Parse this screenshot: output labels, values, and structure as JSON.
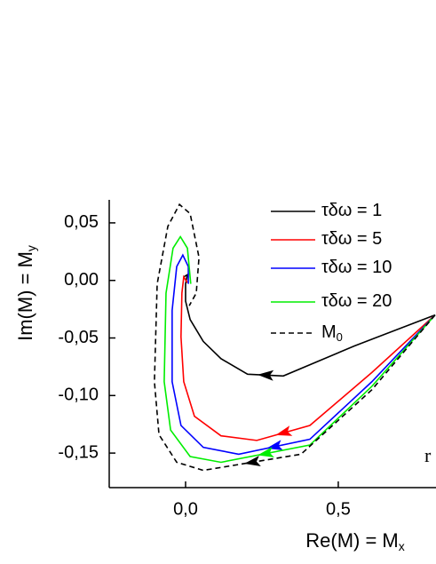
{
  "chart_data": {
    "type": "line",
    "x_label": "Re(M) = M",
    "x_label_subscript": "x",
    "y_label": "Im(M) = M",
    "y_label_subscript": "y",
    "annotation": "r",
    "xlim": [
      -0.25,
      0.82
    ],
    "ylim": [
      -0.18,
      0.07
    ],
    "xticks": [
      {
        "value": 0,
        "label": "0,0"
      },
      {
        "value": 0.5,
        "label": "0,5"
      }
    ],
    "yticks": [
      {
        "value": -0.15,
        "label": "-0,15"
      },
      {
        "value": -0.1,
        "label": "-0,10"
      },
      {
        "value": -0.05,
        "label": "-0,05"
      },
      {
        "value": 0,
        "label": "0,00"
      },
      {
        "value": 0.05,
        "label": "0,05"
      }
    ],
    "legend": "upper right",
    "series": [
      {
        "name": "τδω = 1",
        "color": "#000000",
        "x": [
          0.817,
          0.552,
          0.32,
          0.203,
          0.116,
          0.058,
          0.015,
          0,
          0,
          0.006,
          -0.006
        ],
        "values": [
          -0.03,
          -0.057,
          -0.083,
          -0.0815,
          -0.068,
          -0.053,
          -0.034,
          -0.018,
          -0.003,
          0.005,
          0.003
        ]
      },
      {
        "name": "τδω = 5",
        "color": "#ff0000",
        "x": [
          0.817,
          0.61,
          0.407,
          0.233,
          0.116,
          0.029,
          -0.006,
          -0.015,
          -0.012,
          -0.006,
          0.006
        ],
        "values": [
          -0.03,
          -0.08,
          -0.126,
          -0.139,
          -0.135,
          -0.118,
          -0.088,
          -0.049,
          -0.011,
          0.003,
          -0.002
        ]
      },
      {
        "name": "τδω = 10",
        "color": "#0000ff",
        "x": [
          0.817,
          0.61,
          0.407,
          0.174,
          0.058,
          -0.015,
          -0.044,
          -0.044,
          -0.029,
          -0.009,
          0.009,
          0.009
        ],
        "values": [
          -0.03,
          -0.088,
          -0.138,
          -0.151,
          -0.145,
          -0.126,
          -0.088,
          -0.026,
          0.012,
          0.022,
          0.012,
          -0.003
        ]
      },
      {
        "name": "τδω = 20",
        "color": "#00ee00",
        "x": [
          0.817,
          0.61,
          0.407,
          0.116,
          0.015,
          -0.049,
          -0.07,
          -0.064,
          -0.041,
          -0.017,
          0.006,
          0.017
        ],
        "values": [
          -0.03,
          -0.092,
          -0.143,
          -0.158,
          -0.153,
          -0.13,
          -0.088,
          -0.011,
          0.028,
          0.038,
          0.028,
          -0.003
        ]
      },
      {
        "name": "M",
        "name_subscript": "0",
        "color": "#000000",
        "dash": true,
        "x": [
          0.817,
          0.61,
          0.378,
          0.058,
          -0.029,
          -0.087,
          -0.102,
          -0.093,
          -0.058,
          -0.02,
          0.015,
          0.044,
          0.035,
          0.012
        ],
        "values": [
          -0.03,
          -0.095,
          -0.151,
          -0.165,
          -0.158,
          -0.134,
          -0.088,
          -0.003,
          0.047,
          0.066,
          0.058,
          0.02,
          -0.011,
          -0.022
        ]
      }
    ]
  }
}
